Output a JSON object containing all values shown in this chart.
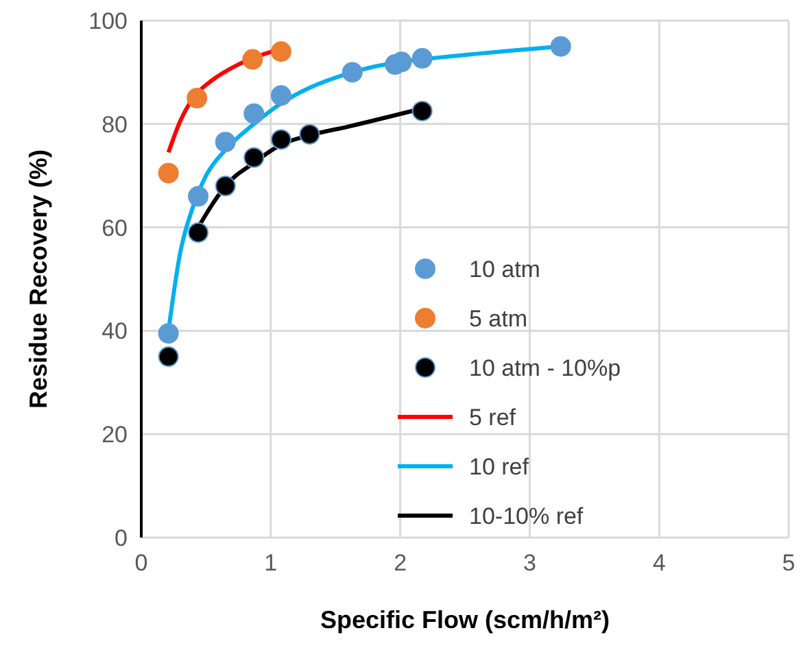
{
  "chart_data": {
    "type": "scatter",
    "xlabel": "Specific Flow (scm/h/m²)",
    "ylabel": "Residue Recovery (%)",
    "xlim": [
      0,
      5
    ],
    "xticks": [
      0,
      1,
      2,
      3,
      4,
      5
    ],
    "ylim": [
      0,
      100
    ],
    "yticks": [
      0,
      20,
      40,
      60,
      80,
      100
    ],
    "grid": true,
    "legend": "right",
    "series": [
      {
        "name": "10 atm",
        "marker": "circle",
        "color": "#5b9bd5",
        "x": [
          0.21,
          0.44,
          0.65,
          0.87,
          1.08,
          1.63,
          1.96,
          2.01,
          2.17,
          3.24
        ],
        "values": [
          39.5,
          66,
          76.5,
          82,
          85.5,
          90,
          91.5,
          92,
          92.7,
          95
        ]
      },
      {
        "name": "5 atm",
        "marker": "circle",
        "color": "#ed7d31",
        "x": [
          0.21,
          0.43,
          0.86,
          1.08
        ],
        "values": [
          70.5,
          85,
          92.5,
          94
        ]
      },
      {
        "name": "10 atm - 10%p",
        "marker": "circle",
        "color": "#000000",
        "x": [
          0.21,
          0.44,
          0.65,
          0.87,
          1.08,
          1.3,
          2.17
        ],
        "values": [
          35,
          59,
          68,
          73.5,
          77,
          78,
          82.5
        ]
      },
      {
        "name": "5 ref",
        "type": "line",
        "marker": "none",
        "color": "#ff0000",
        "x": [
          0.21,
          0.3,
          0.4,
          0.55,
          0.75,
          1.08
        ],
        "values": [
          74.5,
          80.5,
          85,
          88.5,
          91.5,
          94.5
        ]
      },
      {
        "name": "10 ref",
        "type": "line",
        "marker": "none",
        "color": "#00b0f0",
        "x": [
          0.21,
          0.3,
          0.4,
          0.5,
          0.65,
          0.87,
          1.08,
          1.3,
          1.63,
          2,
          2.17,
          3.24
        ],
        "values": [
          40,
          55,
          64,
          70,
          75,
          80,
          84,
          87,
          90,
          92,
          92.5,
          95
        ]
      },
      {
        "name": "10-10% ref",
        "type": "line",
        "marker": "none",
        "color": "#000000",
        "x": [
          0.44,
          0.55,
          0.65,
          0.87,
          1.08,
          1.3,
          1.6,
          2.17
        ],
        "values": [
          60,
          64.5,
          68,
          72.5,
          76,
          77.8,
          79.5,
          83
        ]
      }
    ]
  }
}
